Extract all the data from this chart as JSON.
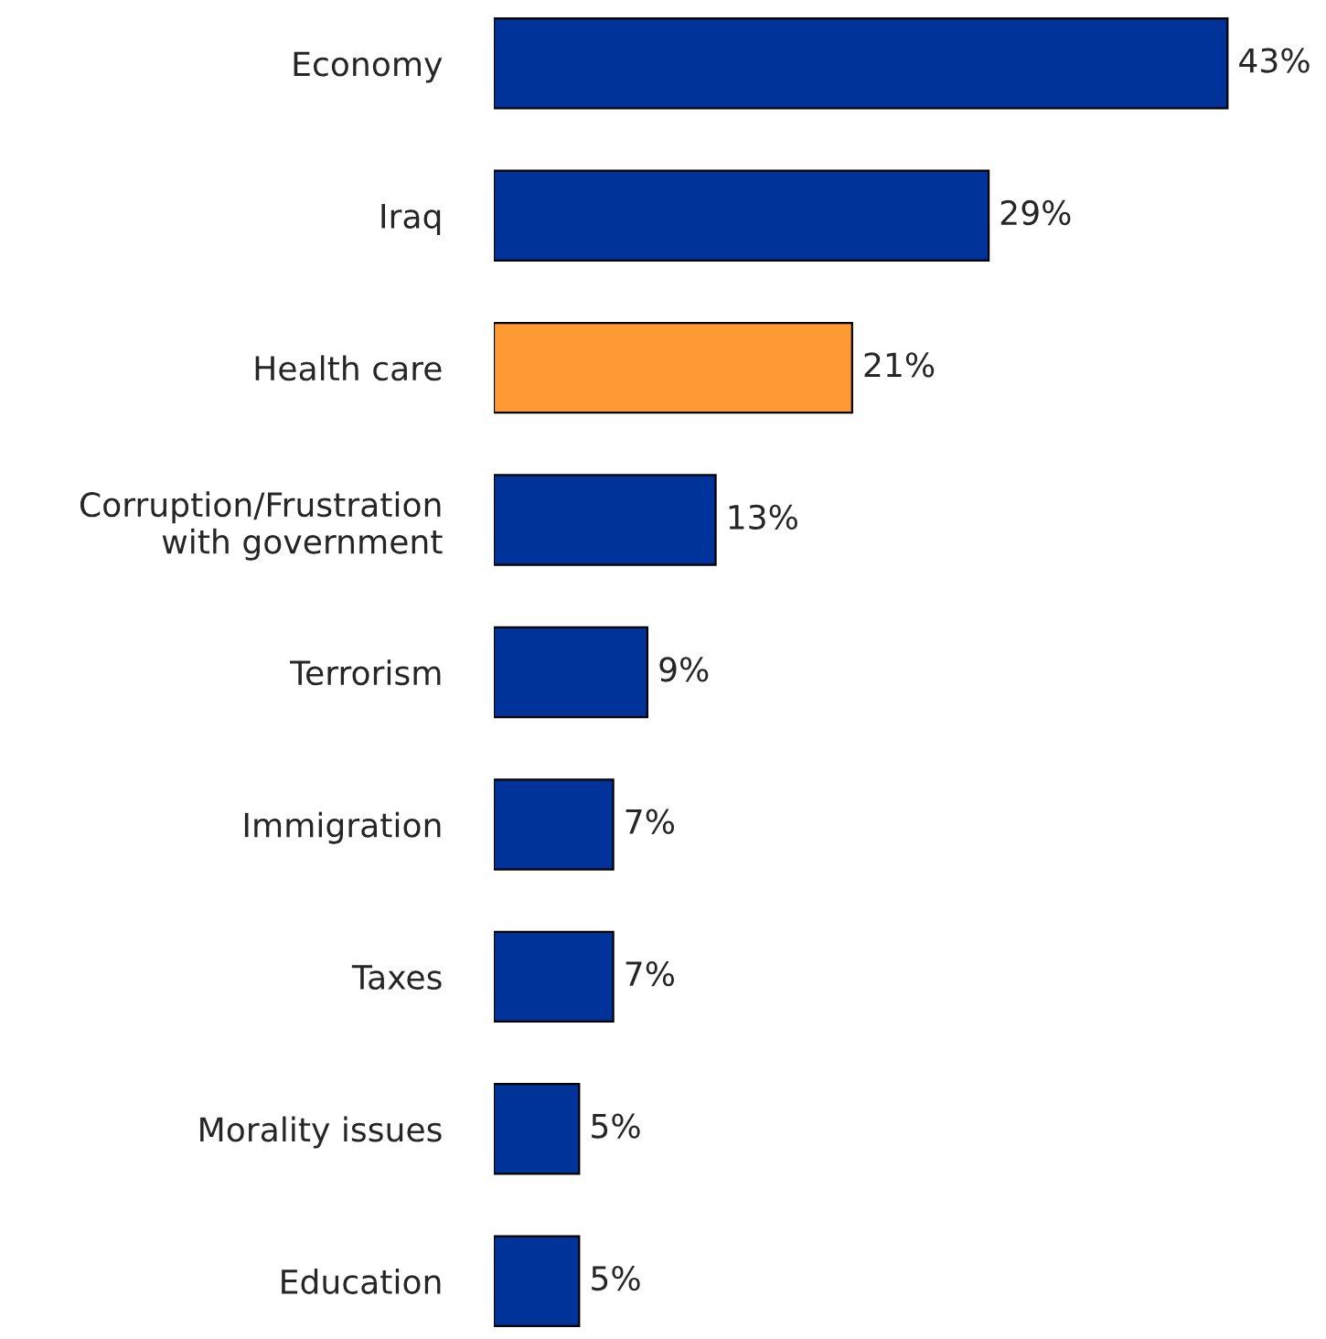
{
  "chart_data": {
    "type": "bar",
    "orientation": "horizontal",
    "categories": [
      "Economy",
      "Iraq",
      "Health care",
      "Corruption/Frustration\nwith government",
      "Terrorism",
      "Immigration",
      "Taxes",
      "Morality issues",
      "Education"
    ],
    "values": [
      43,
      29,
      21,
      13,
      9,
      7,
      7,
      5,
      5
    ],
    "value_labels": [
      "43%",
      "29%",
      "21%",
      "13%",
      "9%",
      "7%",
      "7%",
      "5%",
      "5%"
    ],
    "colors": [
      "#003399",
      "#003399",
      "#ff9933",
      "#003399",
      "#003399",
      "#003399",
      "#003399",
      "#003399",
      "#003399"
    ],
    "grid": false,
    "legend": false
  }
}
